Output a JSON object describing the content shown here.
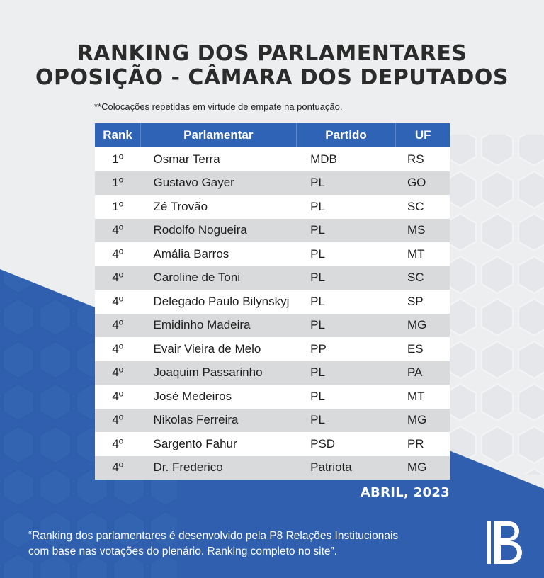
{
  "header": {
    "title_line1": "RANKING DOS PARLAMENTARES",
    "title_line2": "OPOSIÇÃO - CÂMARA DOS DEPUTADOS",
    "note": "**Colocações repetidas em virtude de empate na pontuação."
  },
  "table": {
    "columns": [
      "Rank",
      "Parlamentar",
      "Partido",
      "UF"
    ],
    "rows": [
      {
        "rank": "1º",
        "name": "Osmar Terra",
        "party": "MDB",
        "uf": "RS"
      },
      {
        "rank": "1º",
        "name": "Gustavo Gayer",
        "party": "PL",
        "uf": "GO"
      },
      {
        "rank": "1º",
        "name": "Zé Trovão",
        "party": "PL",
        "uf": "SC"
      },
      {
        "rank": "4º",
        "name": "Rodolfo Nogueira",
        "party": "PL",
        "uf": "MS"
      },
      {
        "rank": "4º",
        "name": "Amália Barros",
        "party": "PL",
        "uf": "MT"
      },
      {
        "rank": "4º",
        "name": "Caroline de Toni",
        "party": "PL",
        "uf": "SC"
      },
      {
        "rank": "4º",
        "name": "Delegado Paulo Bilynskyj",
        "party": "PL",
        "uf": "SP"
      },
      {
        "rank": "4º",
        "name": "Emidinho Madeira",
        "party": "PL",
        "uf": "MG"
      },
      {
        "rank": "4º",
        "name": "Evair Vieira de Melo",
        "party": "PP",
        "uf": "ES"
      },
      {
        "rank": "4º",
        "name": "Joaquim Passarinho",
        "party": "PL",
        "uf": "PA"
      },
      {
        "rank": "4º",
        "name": "José Medeiros",
        "party": "PL",
        "uf": "MT"
      },
      {
        "rank": "4º",
        "name": "Nikolas Ferreira",
        "party": "PL",
        "uf": "MG"
      },
      {
        "rank": "4º",
        "name": "Sargento Fahur",
        "party": "PSD",
        "uf": "PR"
      },
      {
        "rank": "4º",
        "name": "Dr. Frederico",
        "party": "Patriota",
        "uf": "MG"
      }
    ]
  },
  "date": "ABRIL, 2023",
  "footer": {
    "line1": "“Ranking dos parlamentares é desenvolvido pela P8 Relações Institucionais",
    "line2": "com base nas votações do plenário. Ranking completo no site”."
  },
  "logo": {
    "icon": "p8-logo-icon"
  },
  "colors": {
    "accent": "#2f63b6",
    "background": "#eceef0",
    "row_alt": "#d9dadb"
  }
}
